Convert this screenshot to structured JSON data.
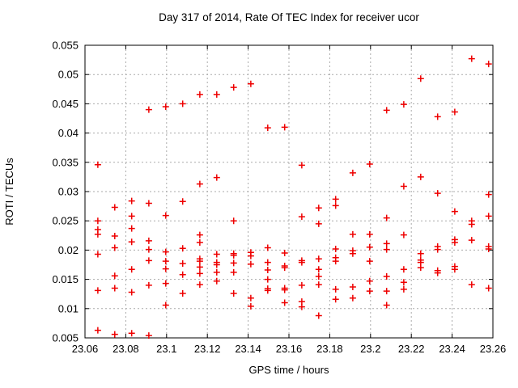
{
  "chart_data": {
    "type": "scatter",
    "title": "Day 317 of 2014, Rate Of TEC Index for receiver ucor",
    "xlabel": "GPS time / hours",
    "ylabel": "ROTI / TECUs",
    "xlim": [
      23.06,
      23.26
    ],
    "ylim": [
      0.005,
      0.055
    ],
    "grid": "dotted",
    "legend": "none",
    "marker": {
      "shape": "plus",
      "color": "#ee0000",
      "size": 9
    },
    "grid_color": "#aaaaaa",
    "border_color": "#000000",
    "xticks": [
      {
        "v": 23.06,
        "label": "23.06"
      },
      {
        "v": 23.08,
        "label": "23.08"
      },
      {
        "v": 23.1,
        "label": "23.1"
      },
      {
        "v": 23.12,
        "label": "23.12"
      },
      {
        "v": 23.14,
        "label": "23.14"
      },
      {
        "v": 23.16,
        "label": "23.16"
      },
      {
        "v": 23.18,
        "label": "23.18"
      },
      {
        "v": 23.2,
        "label": "23.2"
      },
      {
        "v": 23.22,
        "label": "23.22"
      },
      {
        "v": 23.24,
        "label": "23.24"
      },
      {
        "v": 23.26,
        "label": "23.26"
      }
    ],
    "yticks": [
      {
        "v": 0.005,
        "label": "0.005"
      },
      {
        "v": 0.01,
        "label": "0.01"
      },
      {
        "v": 0.015,
        "label": "0.015"
      },
      {
        "v": 0.02,
        "label": "0.02"
      },
      {
        "v": 0.025,
        "label": "0.025"
      },
      {
        "v": 0.03,
        "label": "0.03"
      },
      {
        "v": 0.035,
        "label": "0.035"
      },
      {
        "v": 0.04,
        "label": "0.04"
      },
      {
        "v": 0.045,
        "label": "0.045"
      },
      {
        "v": 0.05,
        "label": "0.05"
      },
      {
        "v": 0.055,
        "label": "0.055"
      }
    ],
    "points": [
      [
        23.0663,
        0.0346
      ],
      [
        23.0663,
        0.025
      ],
      [
        23.0663,
        0.0235
      ],
      [
        23.0663,
        0.0227
      ],
      [
        23.0663,
        0.0193
      ],
      [
        23.0663,
        0.0131
      ],
      [
        23.0663,
        0.0063
      ],
      [
        23.0746,
        0.0273
      ],
      [
        23.0746,
        0.0224
      ],
      [
        23.0746,
        0.0204
      ],
      [
        23.0746,
        0.0156
      ],
      [
        23.0746,
        0.0135
      ],
      [
        23.0746,
        0.0056
      ],
      [
        23.0829,
        0.0284
      ],
      [
        23.0829,
        0.0258
      ],
      [
        23.0829,
        0.0237
      ],
      [
        23.0829,
        0.0214
      ],
      [
        23.0829,
        0.0167
      ],
      [
        23.0829,
        0.0128
      ],
      [
        23.0829,
        0.0058
      ],
      [
        23.0913,
        0.044
      ],
      [
        23.0913,
        0.028
      ],
      [
        23.0913,
        0.0216
      ],
      [
        23.0913,
        0.0201
      ],
      [
        23.0913,
        0.0182
      ],
      [
        23.0913,
        0.014
      ],
      [
        23.0913,
        0.0054
      ],
      [
        23.0996,
        0.0445
      ],
      [
        23.0996,
        0.0259
      ],
      [
        23.0996,
        0.0197
      ],
      [
        23.0996,
        0.0181
      ],
      [
        23.0996,
        0.0168
      ],
      [
        23.0996,
        0.0143
      ],
      [
        23.0996,
        0.0106
      ],
      [
        23.1079,
        0.045
      ],
      [
        23.1079,
        0.0283
      ],
      [
        23.1079,
        0.0203
      ],
      [
        23.1079,
        0.0177
      ],
      [
        23.1079,
        0.0158
      ],
      [
        23.1079,
        0.0126
      ],
      [
        23.1163,
        0.0466
      ],
      [
        23.1163,
        0.0313
      ],
      [
        23.1163,
        0.0226
      ],
      [
        23.1163,
        0.0213
      ],
      [
        23.1163,
        0.0185
      ],
      [
        23.1163,
        0.0181
      ],
      [
        23.1163,
        0.0171
      ],
      [
        23.1163,
        0.016
      ],
      [
        23.1163,
        0.0141
      ],
      [
        23.1246,
        0.0466
      ],
      [
        23.1246,
        0.0324
      ],
      [
        23.1246,
        0.0193
      ],
      [
        23.1246,
        0.0179
      ],
      [
        23.1246,
        0.0175
      ],
      [
        23.1246,
        0.0162
      ],
      [
        23.1246,
        0.0147
      ],
      [
        23.1329,
        0.0478
      ],
      [
        23.1329,
        0.025
      ],
      [
        23.1329,
        0.0194
      ],
      [
        23.1329,
        0.0191
      ],
      [
        23.1329,
        0.0178
      ],
      [
        23.1329,
        0.0162
      ],
      [
        23.1329,
        0.0126
      ],
      [
        23.1413,
        0.0484
      ],
      [
        23.1413,
        0.0196
      ],
      [
        23.1413,
        0.019
      ],
      [
        23.1413,
        0.0176
      ],
      [
        23.1413,
        0.0118
      ],
      [
        23.1413,
        0.0104
      ],
      [
        23.1496,
        0.0409
      ],
      [
        23.1496,
        0.0204
      ],
      [
        23.1496,
        0.0179
      ],
      [
        23.1496,
        0.0166
      ],
      [
        23.1496,
        0.015
      ],
      [
        23.1496,
        0.0134
      ],
      [
        23.1496,
        0.0131
      ],
      [
        23.1579,
        0.041
      ],
      [
        23.1579,
        0.0195
      ],
      [
        23.1579,
        0.0173
      ],
      [
        23.1579,
        0.017
      ],
      [
        23.1579,
        0.0135
      ],
      [
        23.1579,
        0.0132
      ],
      [
        23.1579,
        0.011
      ],
      [
        23.1663,
        0.0345
      ],
      [
        23.1663,
        0.0257
      ],
      [
        23.1663,
        0.0182
      ],
      [
        23.1663,
        0.0179
      ],
      [
        23.1663,
        0.014
      ],
      [
        23.1663,
        0.0112
      ],
      [
        23.1663,
        0.0103
      ],
      [
        23.1746,
        0.0272
      ],
      [
        23.1746,
        0.0245
      ],
      [
        23.1746,
        0.0185
      ],
      [
        23.1746,
        0.0167
      ],
      [
        23.1746,
        0.0155
      ],
      [
        23.1746,
        0.0141
      ],
      [
        23.1746,
        0.0088
      ],
      [
        23.1829,
        0.0287
      ],
      [
        23.1829,
        0.0276
      ],
      [
        23.1829,
        0.0202
      ],
      [
        23.1829,
        0.0187
      ],
      [
        23.1829,
        0.0181
      ],
      [
        23.1829,
        0.0133
      ],
      [
        23.1829,
        0.0116
      ],
      [
        23.1913,
        0.0332
      ],
      [
        23.1913,
        0.0227
      ],
      [
        23.1913,
        0.0199
      ],
      [
        23.1913,
        0.0194
      ],
      [
        23.1913,
        0.0137
      ],
      [
        23.1913,
        0.0118
      ],
      [
        23.1996,
        0.0347
      ],
      [
        23.1996,
        0.0227
      ],
      [
        23.1996,
        0.0205
      ],
      [
        23.1996,
        0.0181
      ],
      [
        23.1996,
        0.0147
      ],
      [
        23.1996,
        0.013
      ],
      [
        23.2079,
        0.0439
      ],
      [
        23.2079,
        0.0255
      ],
      [
        23.2079,
        0.0211
      ],
      [
        23.2079,
        0.0201
      ],
      [
        23.2079,
        0.0155
      ],
      [
        23.2079,
        0.013
      ],
      [
        23.2079,
        0.0106
      ],
      [
        23.2163,
        0.0449
      ],
      [
        23.2163,
        0.0309
      ],
      [
        23.2163,
        0.0226
      ],
      [
        23.2163,
        0.0167
      ],
      [
        23.2163,
        0.0145
      ],
      [
        23.2163,
        0.0133
      ],
      [
        23.2246,
        0.0493
      ],
      [
        23.2246,
        0.0325
      ],
      [
        23.2246,
        0.0194
      ],
      [
        23.2246,
        0.0183
      ],
      [
        23.2246,
        0.0179
      ],
      [
        23.2246,
        0.017
      ],
      [
        23.2329,
        0.0428
      ],
      [
        23.2329,
        0.0297
      ],
      [
        23.2329,
        0.0206
      ],
      [
        23.2329,
        0.0201
      ],
      [
        23.2329,
        0.0165
      ],
      [
        23.2329,
        0.0161
      ],
      [
        23.2413,
        0.0436
      ],
      [
        23.2413,
        0.0266
      ],
      [
        23.2413,
        0.0218
      ],
      [
        23.2413,
        0.0213
      ],
      [
        23.2413,
        0.0172
      ],
      [
        23.2413,
        0.0167
      ],
      [
        23.2496,
        0.0527
      ],
      [
        23.2496,
        0.025
      ],
      [
        23.2496,
        0.0244
      ],
      [
        23.2496,
        0.0217
      ],
      [
        23.2496,
        0.0141
      ],
      [
        23.2579,
        0.0518
      ],
      [
        23.2579,
        0.0295
      ],
      [
        23.2579,
        0.0258
      ],
      [
        23.2579,
        0.0206
      ],
      [
        23.2579,
        0.0202
      ],
      [
        23.2579,
        0.0135
      ]
    ]
  }
}
